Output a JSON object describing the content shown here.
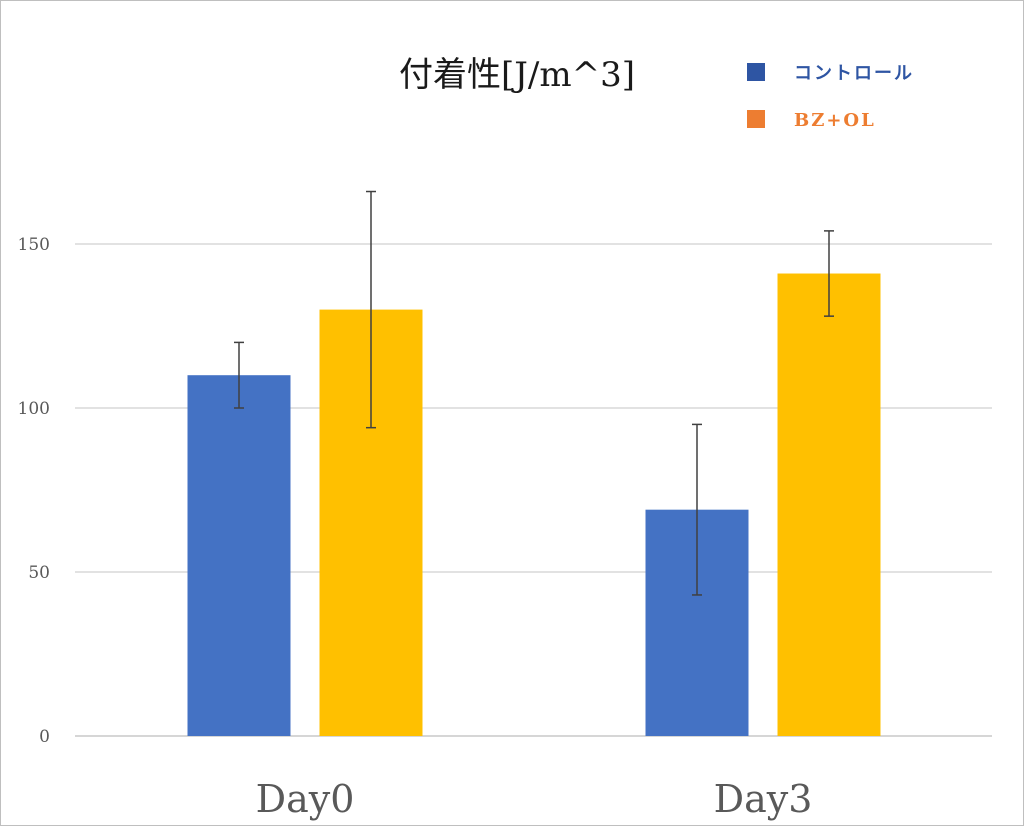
{
  "chart_data": {
    "type": "bar",
    "title": "付着性[J/m^3]",
    "categories": [
      "Day0",
      "Day3"
    ],
    "ylim": [
      0,
      175
    ],
    "yticks": [
      0,
      50,
      100,
      150
    ],
    "grid": true,
    "legend_position": "top-right",
    "series": [
      {
        "name": "コントロール",
        "legend_color": "#2E55A3",
        "color": "#4472C4",
        "values": [
          110,
          69
        ],
        "error_low": [
          100,
          43
        ],
        "error_high": [
          120,
          95
        ]
      },
      {
        "name": "BZ+OL",
        "legend_color": "#ED7D31",
        "color": "#FFC000",
        "values": [
          130,
          141
        ],
        "error_low": [
          94,
          128
        ],
        "error_high": [
          166,
          154
        ]
      }
    ]
  }
}
